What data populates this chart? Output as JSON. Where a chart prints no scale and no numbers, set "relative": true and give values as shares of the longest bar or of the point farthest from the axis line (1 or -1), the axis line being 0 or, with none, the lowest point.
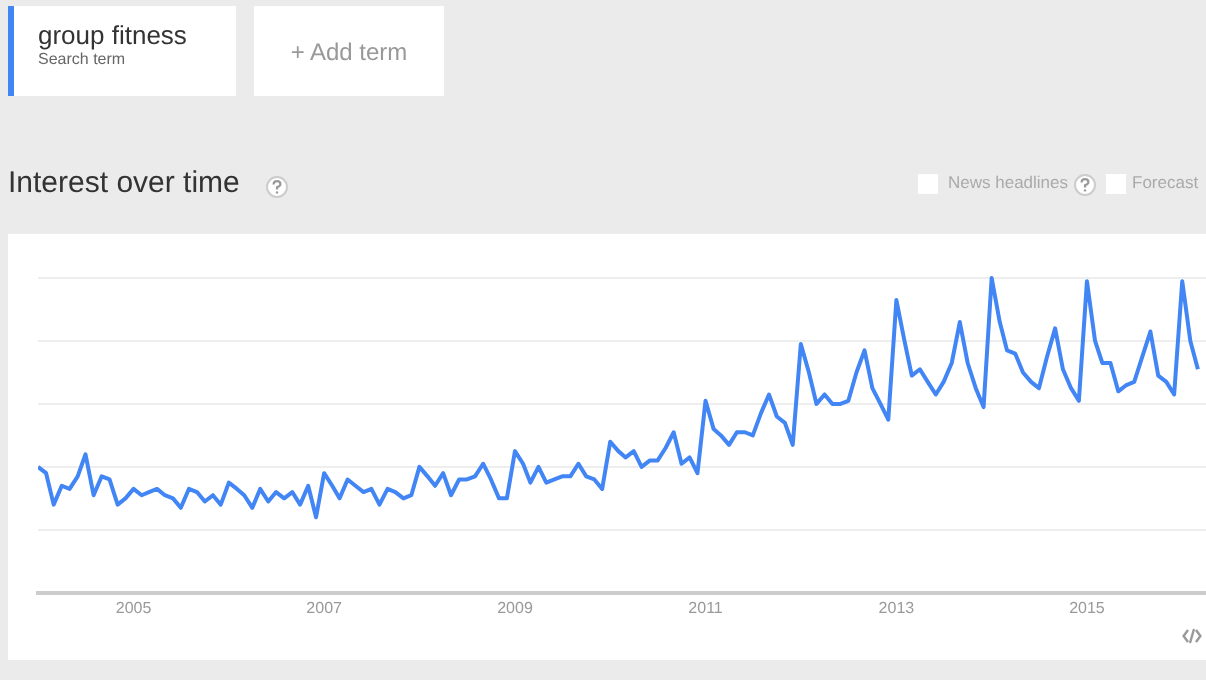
{
  "chart_data": {
    "type": "line",
    "title": "Interest over time",
    "relative": true,
    "grid": "y",
    "tick_labels": "x",
    "annotations": [
      "group fitness",
      "Search term",
      "+ Add term",
      "News headlines",
      "Forecast"
    ],
    "xlim": [
      "2004-01",
      "2016-04"
    ],
    "xticks": [
      "2005",
      "2007",
      "2009",
      "2011",
      "2013",
      "2015"
    ],
    "x": [
      "2004-01",
      "2004-02",
      "2004-03",
      "2004-04",
      "2004-05",
      "2004-06",
      "2004-07",
      "2004-08",
      "2004-09",
      "2004-10",
      "2004-11",
      "2004-12",
      "2005-01",
      "2005-02",
      "2005-03",
      "2005-04",
      "2005-05",
      "2005-06",
      "2005-07",
      "2005-08",
      "2005-09",
      "2005-10",
      "2005-11",
      "2005-12",
      "2006-01",
      "2006-02",
      "2006-03",
      "2006-04",
      "2006-05",
      "2006-06",
      "2006-07",
      "2006-08",
      "2006-09",
      "2006-10",
      "2006-11",
      "2006-12",
      "2007-01",
      "2007-02",
      "2007-03",
      "2007-04",
      "2007-05",
      "2007-06",
      "2007-07",
      "2007-08",
      "2007-09",
      "2007-10",
      "2007-11",
      "2007-12",
      "2008-01",
      "2008-02",
      "2008-03",
      "2008-04",
      "2008-05",
      "2008-06",
      "2008-07",
      "2008-08",
      "2008-09",
      "2008-10",
      "2008-11",
      "2008-12",
      "2009-01",
      "2009-02",
      "2009-03",
      "2009-04",
      "2009-05",
      "2009-06",
      "2009-07",
      "2009-08",
      "2009-09",
      "2009-10",
      "2009-11",
      "2009-12",
      "2010-01",
      "2010-02",
      "2010-03",
      "2010-04",
      "2010-05",
      "2010-06",
      "2010-07",
      "2010-08",
      "2010-09",
      "2010-10",
      "2010-11",
      "2010-12",
      "2011-01",
      "2011-02",
      "2011-03",
      "2011-04",
      "2011-05",
      "2011-06",
      "2011-07",
      "2011-08",
      "2011-09",
      "2011-10",
      "2011-11",
      "2011-12",
      "2012-01",
      "2012-02",
      "2012-03",
      "2012-04",
      "2012-05",
      "2012-06",
      "2012-07",
      "2012-08",
      "2012-09",
      "2012-10",
      "2012-11",
      "2012-12",
      "2013-01",
      "2013-02",
      "2013-03",
      "2013-04",
      "2013-05",
      "2013-06",
      "2013-07",
      "2013-08",
      "2013-09",
      "2013-10",
      "2013-11",
      "2013-12",
      "2014-01",
      "2014-02",
      "2014-03",
      "2014-04",
      "2014-05",
      "2014-06",
      "2014-07",
      "2014-08",
      "2014-09",
      "2014-10",
      "2014-11",
      "2014-12",
      "2015-01",
      "2015-02",
      "2015-03",
      "2015-04",
      "2015-05",
      "2015-06",
      "2015-07",
      "2015-08",
      "2015-09",
      "2015-10",
      "2015-11",
      "2015-12",
      "2016-01",
      "2016-02",
      "2016-03"
    ],
    "series": [
      {
        "color": "#4285f4",
        "values": [
          0.4,
          0.38,
          0.28,
          0.34,
          0.33,
          0.37,
          0.44,
          0.31,
          0.37,
          0.36,
          0.28,
          0.3,
          0.33,
          0.31,
          0.32,
          0.33,
          0.31,
          0.3,
          0.27,
          0.33,
          0.32,
          0.29,
          0.31,
          0.28,
          0.35,
          0.33,
          0.31,
          0.27,
          0.33,
          0.29,
          0.32,
          0.3,
          0.32,
          0.28,
          0.34,
          0.24,
          0.38,
          0.34,
          0.3,
          0.36,
          0.34,
          0.32,
          0.33,
          0.28,
          0.33,
          0.32,
          0.3,
          0.31,
          0.4,
          0.37,
          0.34,
          0.38,
          0.31,
          0.36,
          0.36,
          0.37,
          0.41,
          0.36,
          0.3,
          0.3,
          0.45,
          0.41,
          0.35,
          0.4,
          0.35,
          0.36,
          0.37,
          0.37,
          0.41,
          0.37,
          0.36,
          0.33,
          0.48,
          0.45,
          0.43,
          0.45,
          0.4,
          0.42,
          0.42,
          0.46,
          0.51,
          0.41,
          0.43,
          0.38,
          0.61,
          0.52,
          0.5,
          0.47,
          0.51,
          0.51,
          0.5,
          0.57,
          0.63,
          0.56,
          0.54,
          0.47,
          0.79,
          0.7,
          0.6,
          0.63,
          0.6,
          0.6,
          0.61,
          0.7,
          0.77,
          0.65,
          0.6,
          0.55,
          0.93,
          0.8,
          0.69,
          0.71,
          0.67,
          0.63,
          0.67,
          0.73,
          0.86,
          0.73,
          0.65,
          0.59,
          1.0,
          0.86,
          0.77,
          0.76,
          0.7,
          0.67,
          0.65,
          0.75,
          0.84,
          0.71,
          0.65,
          0.61,
          0.99,
          0.8,
          0.73,
          0.73,
          0.64,
          0.66,
          0.67,
          0.75,
          0.83,
          0.69,
          0.67,
          0.63,
          0.99,
          0.8,
          0.71
        ]
      }
    ]
  }
}
